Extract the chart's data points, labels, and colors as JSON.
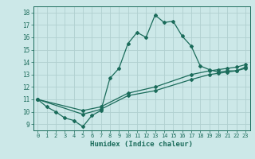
{
  "title": "",
  "xlabel": "Humidex (Indice chaleur)",
  "xlim": [
    -0.5,
    23.5
  ],
  "ylim": [
    8.5,
    18.5
  ],
  "xticks": [
    0,
    1,
    2,
    3,
    4,
    5,
    6,
    7,
    8,
    9,
    10,
    11,
    12,
    13,
    14,
    15,
    16,
    17,
    18,
    19,
    20,
    21,
    22,
    23
  ],
  "yticks": [
    9,
    10,
    11,
    12,
    13,
    14,
    15,
    16,
    17,
    18
  ],
  "bg_color": "#cce8e8",
  "line_color": "#1a6b5a",
  "grid_color": "#b0d0d0",
  "line1_x": [
    0,
    1,
    2,
    3,
    4,
    5,
    6,
    7,
    8,
    9,
    10,
    11,
    12,
    13,
    14,
    15,
    16,
    17,
    18,
    19,
    20,
    21,
    22,
    23
  ],
  "line1_y": [
    11.0,
    10.4,
    10.0,
    9.5,
    9.3,
    8.8,
    9.7,
    10.1,
    12.7,
    13.5,
    15.5,
    16.4,
    16.0,
    17.8,
    17.2,
    17.3,
    16.1,
    15.3,
    13.7,
    13.4,
    13.2,
    13.3,
    13.3,
    13.6
  ],
  "line2_x": [
    0,
    5,
    7,
    10,
    13,
    17,
    19,
    20,
    21,
    22,
    23
  ],
  "line2_y": [
    11.0,
    9.8,
    10.2,
    11.3,
    11.7,
    12.6,
    13.0,
    13.1,
    13.2,
    13.3,
    13.5
  ],
  "line3_x": [
    0,
    5,
    7,
    10,
    13,
    17,
    19,
    20,
    21,
    22,
    23
  ],
  "line3_y": [
    11.0,
    10.1,
    10.4,
    11.5,
    12.0,
    13.0,
    13.3,
    13.4,
    13.5,
    13.6,
    13.8
  ]
}
